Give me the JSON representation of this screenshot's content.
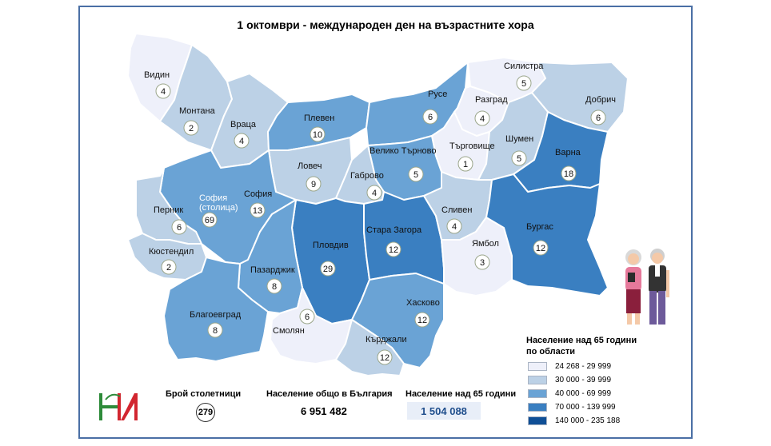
{
  "title": "1 октомври - международен ден на възрастните хора",
  "colors": {
    "class1": "#eef0fa",
    "class2": "#bcd1e6",
    "class3": "#6aa3d5",
    "class4": "#3a7fc1",
    "class5": "#0f4f96"
  },
  "regions": [
    {
      "name": "Видин",
      "value": "4",
      "class": "class1"
    },
    {
      "name": "Монтана",
      "value": "2",
      "class": "class2"
    },
    {
      "name": "Враца",
      "value": "4",
      "class": "class2"
    },
    {
      "name": "Плевен",
      "value": "10",
      "class": "class3"
    },
    {
      "name": "Русе",
      "value": "6",
      "class": "class3"
    },
    {
      "name": "Силистра",
      "value": "5",
      "class": "class1"
    },
    {
      "name": "Разград",
      "value": "4",
      "class": "class1"
    },
    {
      "name": "Добрич",
      "value": "6",
      "class": "class2"
    },
    {
      "name": "Търговище",
      "value": "1",
      "class": "class1"
    },
    {
      "name": "Шумен",
      "value": "5",
      "class": "class2"
    },
    {
      "name": "Варна",
      "value": "18",
      "class": "class4"
    },
    {
      "name": "Велико Търново",
      "value": "5",
      "class": "class3"
    },
    {
      "name": "Ловеч",
      "value": "9",
      "class": "class2"
    },
    {
      "name": "Габрово",
      "value": "4",
      "class": "class2"
    },
    {
      "name": "София (столица)",
      "value": "69",
      "class": "class5"
    },
    {
      "name": "София",
      "value": "13",
      "class": "class3"
    },
    {
      "name": "Перник",
      "value": "6",
      "class": "class2"
    },
    {
      "name": "Кюстендил",
      "value": "2",
      "class": "class2"
    },
    {
      "name": "Пловдив",
      "value": "29",
      "class": "class4"
    },
    {
      "name": "Стара Загора",
      "value": "12",
      "class": "class4"
    },
    {
      "name": "Сливен",
      "value": "4",
      "class": "class2"
    },
    {
      "name": "Ямбол",
      "value": "3",
      "class": "class1"
    },
    {
      "name": "Бургас",
      "value": "12",
      "class": "class4"
    },
    {
      "name": "Пазарджик",
      "value": "8",
      "class": "class3"
    },
    {
      "name": "Благоевград",
      "value": "8",
      "class": "class3"
    },
    {
      "name": "Смолян",
      "value": "6",
      "class": "class1"
    },
    {
      "name": "Хасково",
      "value": "12",
      "class": "class3"
    },
    {
      "name": "Кърджали",
      "value": "12",
      "class": "class2"
    }
  ],
  "stats": {
    "centenarians_label": "Брой столетници",
    "centenarians_value": "279",
    "population_label": "Население общо в България",
    "population_value": "6 951 482",
    "over65_label": "Население над 65 години",
    "over65_value": "1 504 088"
  },
  "legend": {
    "title_line1": "Население над 65 години",
    "title_line2": "по области",
    "items": [
      {
        "label": "24 268 -   29 999",
        "class": "class1"
      },
      {
        "label": "30 000 -   39 999",
        "class": "class2"
      },
      {
        "label": "40 000 -   69 999",
        "class": "class3"
      },
      {
        "label": "70 000 - 139 999",
        "class": "class4"
      },
      {
        "label": "140 000 - 235 188",
        "class": "class5"
      }
    ]
  },
  "logo_text": "НИ",
  "logo_colors": {
    "green": "#2e8b3a",
    "red": "#d22630"
  }
}
